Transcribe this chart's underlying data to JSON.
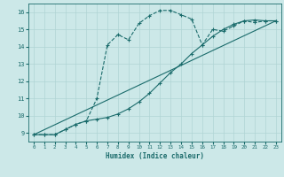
{
  "bg_color": "#cce8e8",
  "grid_color": "#b0d4d4",
  "line_color": "#1a6b6b",
  "xlabel": "Humidex (Indice chaleur)",
  "xlim": [
    -0.5,
    23.5
  ],
  "ylim": [
    8.5,
    16.5
  ],
  "xticks": [
    0,
    1,
    2,
    3,
    4,
    5,
    6,
    7,
    8,
    9,
    10,
    11,
    12,
    13,
    14,
    15,
    16,
    17,
    18,
    19,
    20,
    21,
    22,
    23
  ],
  "yticks": [
    9,
    10,
    11,
    12,
    13,
    14,
    15,
    16
  ],
  "line1_x": [
    0,
    1,
    2,
    3,
    4,
    5,
    6,
    7,
    8,
    9,
    10,
    11,
    12,
    13,
    14,
    15,
    16,
    17,
    18,
    19,
    20,
    21,
    22,
    23
  ],
  "line1_y": [
    8.9,
    8.9,
    8.9,
    9.2,
    9.5,
    9.7,
    11.0,
    14.1,
    14.7,
    14.4,
    15.35,
    15.8,
    16.1,
    16.1,
    15.85,
    15.6,
    14.1,
    15.0,
    14.9,
    15.2,
    15.5,
    15.4,
    15.5,
    15.5
  ],
  "line2_x": [
    0,
    1,
    2,
    3,
    4,
    5,
    6,
    7,
    8,
    9,
    10,
    11,
    12,
    13,
    14,
    15,
    16,
    17,
    18,
    19,
    20,
    21,
    22,
    23
  ],
  "line2_y": [
    8.9,
    8.9,
    8.9,
    9.2,
    9.5,
    9.7,
    9.8,
    9.9,
    10.1,
    10.4,
    10.8,
    11.3,
    11.9,
    12.5,
    13.0,
    13.6,
    14.1,
    14.6,
    15.0,
    15.3,
    15.5,
    15.55,
    15.5,
    15.5
  ],
  "line3_x": [
    0,
    23
  ],
  "line3_y": [
    8.9,
    15.5
  ]
}
